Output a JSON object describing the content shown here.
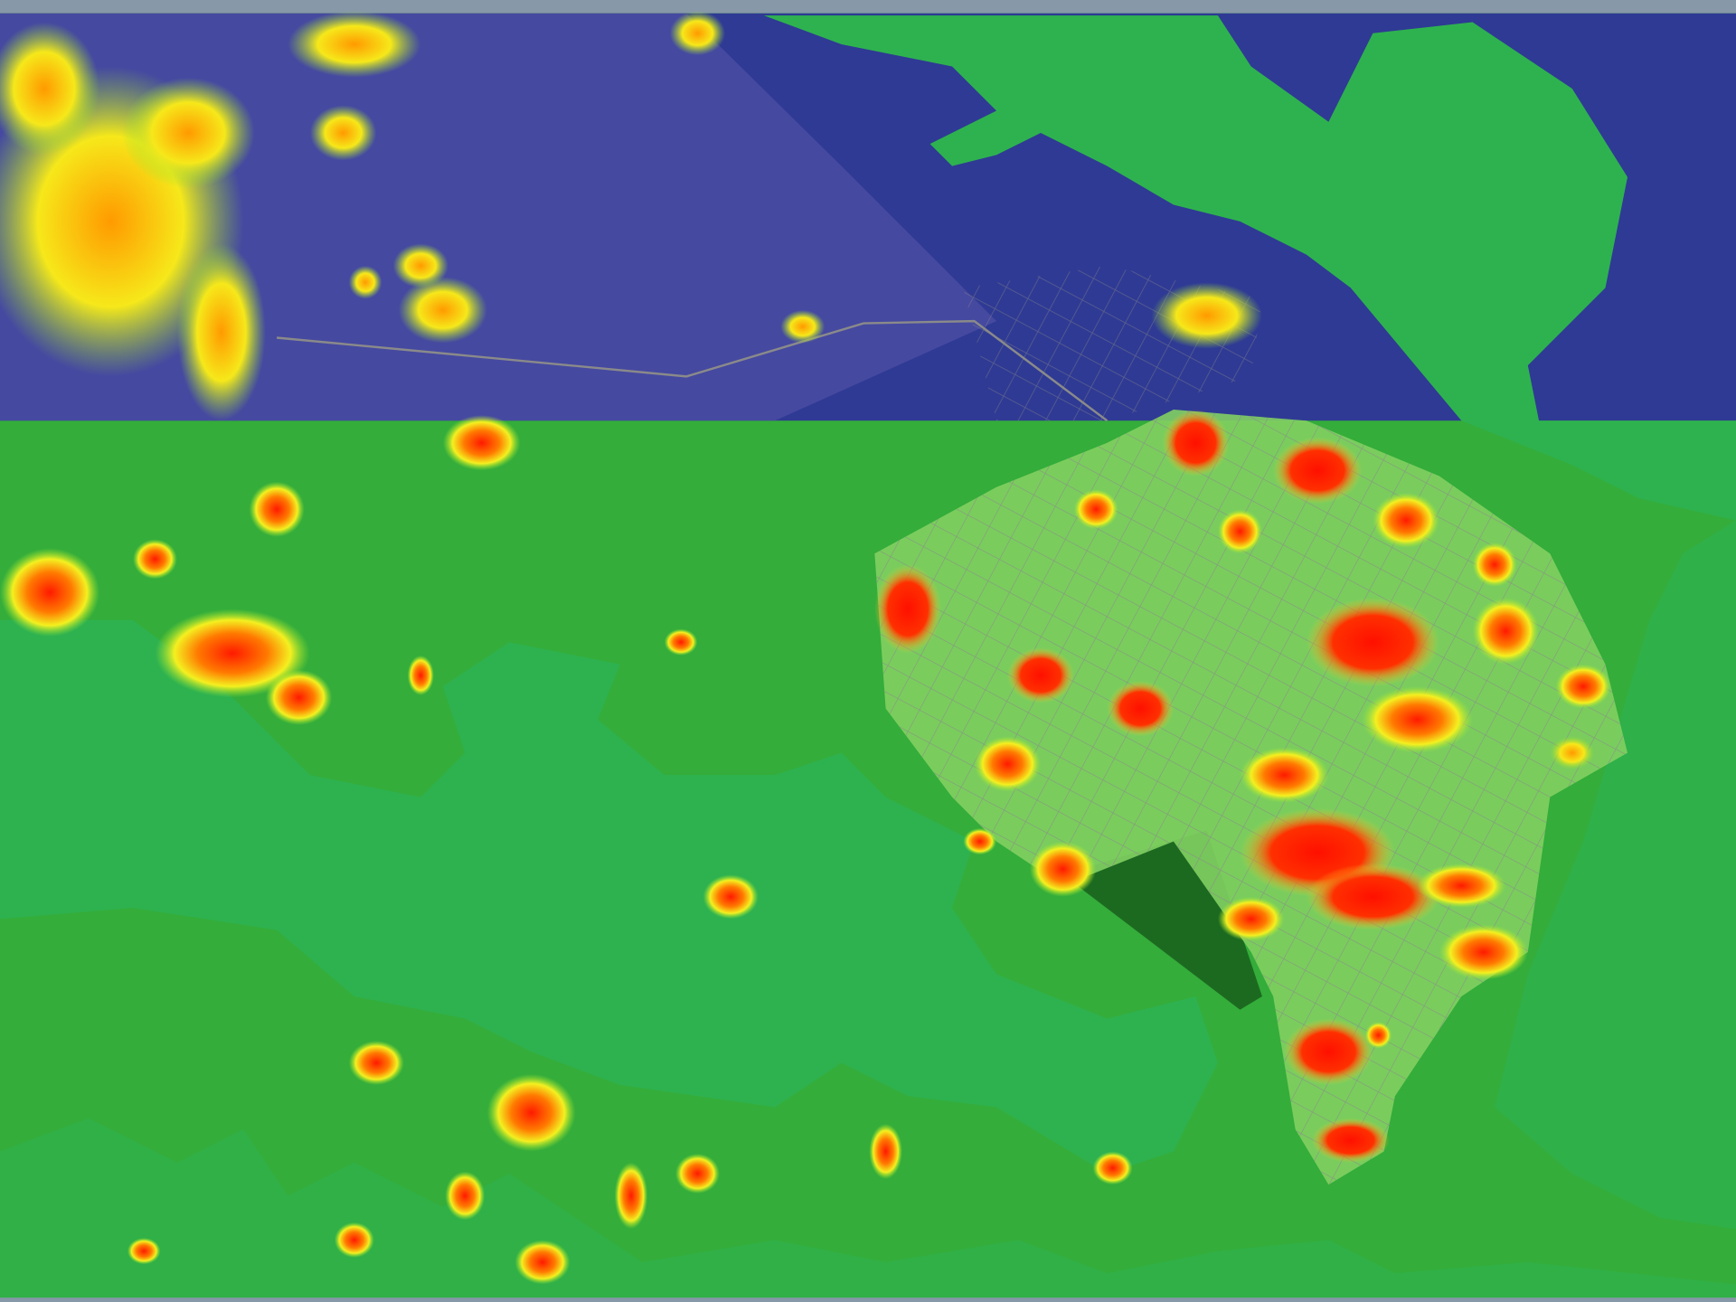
{
  "map": {
    "type": "heatmap-overlay-on-satellite-terrain",
    "colors": {
      "sky": "#8798a8",
      "upper_region": "#2f3a94",
      "upper_region_urban": "#6a5bb0",
      "water": "#2eb24f",
      "land": "#34b03a",
      "city_base": "#7fd060",
      "heat_low": "#f0f020",
      "heat_mid": "#ff8a00",
      "heat_high": "#ff1a00",
      "roads": "#8a8a8a"
    },
    "legend": null
  }
}
